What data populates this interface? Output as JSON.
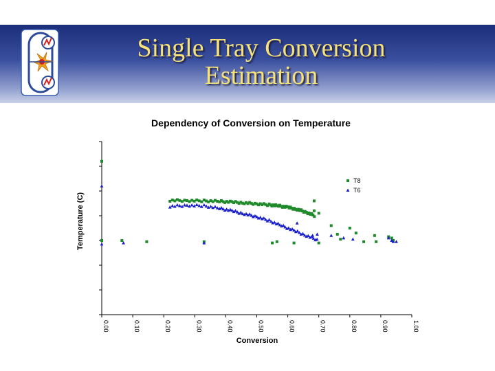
{
  "slide": {
    "title_line1": "Single Tray Conversion",
    "title_line2": "Estimation",
    "colors": {
      "header_dark": "#1c2e7a",
      "header_light": "#c9d0e8",
      "title_text": "#f6e27a"
    }
  },
  "logo": {
    "icon": "reactor-logo-icon"
  },
  "chart_data": {
    "type": "scatter",
    "title": "Dependency of Conversion on Temperature",
    "xlabel": "Conversion",
    "ylabel": "Temperature (C)",
    "xlim": [
      0,
      1.0
    ],
    "ylim": [
      0,
      7
    ],
    "x_ticks": [
      "0.00",
      "0.10",
      "0.20",
      "0.30",
      "0.40",
      "0.50",
      "0.60",
      "0.70",
      "0.80",
      "0.90",
      "1.00"
    ],
    "y_tick_count": 8,
    "grid": false,
    "legend_position": "top-right",
    "series": [
      {
        "name": "T8",
        "color": "#1e8a2a",
        "marker": "square",
        "points": [
          [
            0.0,
            6.2
          ],
          [
            0.0,
            3.0
          ],
          [
            0.065,
            3.0
          ],
          [
            0.145,
            2.95
          ],
          [
            0.33,
            2.95
          ],
          [
            0.55,
            2.9
          ],
          [
            0.565,
            2.95
          ],
          [
            0.62,
            2.9
          ],
          [
            0.685,
            4.6
          ],
          [
            0.7,
            2.9
          ],
          [
            0.76,
            3.25
          ],
          [
            0.77,
            3.05
          ],
          [
            0.8,
            3.5
          ],
          [
            0.82,
            3.3
          ],
          [
            0.845,
            2.95
          ],
          [
            0.88,
            3.2
          ],
          [
            0.885,
            2.95
          ],
          [
            0.925,
            3.15
          ],
          [
            0.935,
            3.1
          ],
          [
            0.94,
            3.0
          ],
          [
            0.685,
            4.2
          ],
          [
            0.7,
            4.1
          ],
          [
            0.74,
            3.6
          ]
        ]
      },
      {
        "name": "T6",
        "color": "#1a1fcc",
        "marker": "triangle",
        "points": [
          [
            0.0,
            5.2
          ],
          [
            0.0,
            2.85
          ],
          [
            0.07,
            2.9
          ],
          [
            0.33,
            2.9
          ],
          [
            0.63,
            3.7
          ],
          [
            0.68,
            3.2
          ],
          [
            0.695,
            3.25
          ],
          [
            0.74,
            3.2
          ],
          [
            0.78,
            3.1
          ],
          [
            0.81,
            3.05
          ],
          [
            0.925,
            3.1
          ],
          [
            0.935,
            3.0
          ],
          [
            0.94,
            2.95
          ],
          [
            0.95,
            2.95
          ]
        ]
      }
    ],
    "dense_bands": [
      {
        "series": "T8",
        "x": [
          0.22,
          0.275,
          0.33,
          0.38,
          0.42,
          0.46,
          0.5,
          0.54,
          0.57,
          0.6,
          0.63,
          0.66,
          0.69
        ],
        "y": [
          4.62,
          4.61,
          4.6,
          4.58,
          4.55,
          4.52,
          4.48,
          4.44,
          4.4,
          4.34,
          4.26,
          4.14,
          3.98
        ]
      },
      {
        "series": "T6",
        "x": [
          0.22,
          0.275,
          0.33,
          0.38,
          0.42,
          0.46,
          0.5,
          0.54,
          0.58,
          0.62,
          0.66,
          0.7
        ],
        "y": [
          4.38,
          4.42,
          4.4,
          4.3,
          4.2,
          4.08,
          3.96,
          3.8,
          3.6,
          3.4,
          3.2,
          3.0
        ]
      }
    ]
  }
}
